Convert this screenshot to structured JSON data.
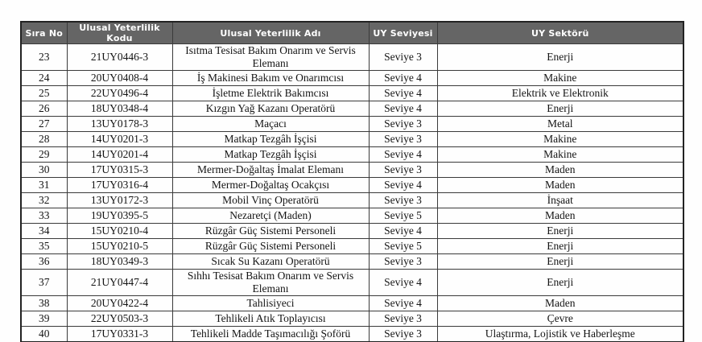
{
  "table": {
    "columns": [
      "Sıra No",
      "Ulusal Yeterlilik Kodu",
      "Ulusal Yeterlilik Adı",
      "UY Seviyesi",
      "UY Sektörü"
    ],
    "rows": [
      {
        "no": "23",
        "code": "21UY0446-3",
        "name": "Isıtma Tesisat Bakım Onarım ve Servis Elemanı",
        "level": "Seviye 3",
        "sector": "Enerji"
      },
      {
        "no": "24",
        "code": "20UY0408-4",
        "name": "İş Makinesi Bakım ve Onarımcısı",
        "level": "Seviye 4",
        "sector": "Makine"
      },
      {
        "no": "25",
        "code": "22UY0496-4",
        "name": "İşletme Elektrik Bakımcısı",
        "level": "Seviye 4",
        "sector": "Elektrik ve Elektronik"
      },
      {
        "no": "26",
        "code": "18UY0348-4",
        "name": "Kızgın Yağ Kazanı Operatörü",
        "level": "Seviye 4",
        "sector": "Enerji"
      },
      {
        "no": "27",
        "code": "13UY0178-3",
        "name": "Maçacı",
        "level": "Seviye 3",
        "sector": "Metal"
      },
      {
        "no": "28",
        "code": "14UY0201-3",
        "name": "Matkap Tezgâh İşçisi",
        "level": "Seviye 3",
        "sector": "Makine"
      },
      {
        "no": "29",
        "code": "14UY0201-4",
        "name": "Matkap Tezgâh İşçisi",
        "level": "Seviye 4",
        "sector": "Makine"
      },
      {
        "no": "30",
        "code": "17UY0315-3",
        "name": "Mermer-Doğaltaş İmalat Elemanı",
        "level": "Seviye 3",
        "sector": "Maden"
      },
      {
        "no": "31",
        "code": "17UY0316-4",
        "name": "Mermer-Doğaltaş Ocakçısı",
        "level": "Seviye 4",
        "sector": "Maden"
      },
      {
        "no": "32",
        "code": "13UY0172-3",
        "name": "Mobil Vinç Operatörü",
        "level": "Seviye 3",
        "sector": "İnşaat"
      },
      {
        "no": "33",
        "code": "19UY0395-5",
        "name": "Nezaretçi (Maden)",
        "level": "Seviye 5",
        "sector": "Maden"
      },
      {
        "no": "34",
        "code": "15UY0210-4",
        "name": "Rüzgâr Güç Sistemi Personeli",
        "level": "Seviye 4",
        "sector": "Enerji"
      },
      {
        "no": "35",
        "code": "15UY0210-5",
        "name": "Rüzgâr Güç Sistemi Personeli",
        "level": "Seviye 5",
        "sector": "Enerji"
      },
      {
        "no": "36",
        "code": "18UY0349-3",
        "name": "Sıcak Su Kazanı Operatörü",
        "level": "Seviye 3",
        "sector": "Enerji"
      },
      {
        "no": "37",
        "code": "21UY0447-4",
        "name": "Sıhhı Tesisat Bakım Onarım ve Servis Elemanı",
        "level": "Seviye 4",
        "sector": "Enerji"
      },
      {
        "no": "38",
        "code": "20UY0422-4",
        "name": "Tahlisiyeci",
        "level": "Seviye 4",
        "sector": "Maden"
      },
      {
        "no": "39",
        "code": "22UY0503-3",
        "name": "Tehlikeli Atık Toplayıcısı",
        "level": "Seviye 3",
        "sector": "Çevre"
      },
      {
        "no": "40",
        "code": "17UY0331-3",
        "name": "Tehlikeli Madde Taşımacılığı Şoförü",
        "level": "Seviye 3",
        "sector": "Ulaştırma, Lojistik ve Haberleşme"
      }
    ],
    "colors": {
      "header_bg": "#656565",
      "header_text": "#ffffff",
      "border": "#3a3a3a",
      "border_outer": "#222222",
      "body_text": "#141414"
    }
  }
}
